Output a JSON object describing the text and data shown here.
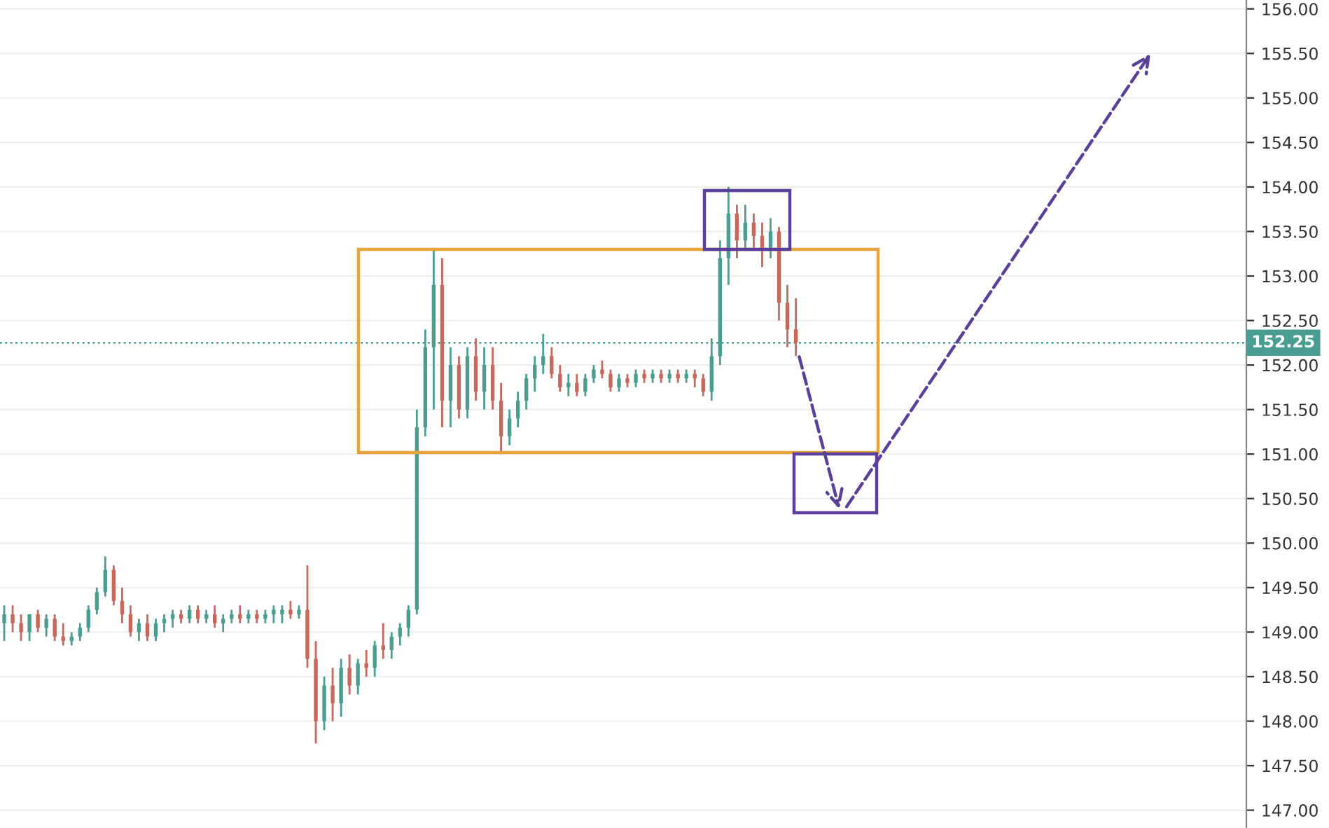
{
  "chart_data": {
    "type": "candlestick",
    "categories": [
      null,
      null,
      null,
      null,
      null,
      null,
      null,
      null,
      null,
      null,
      null,
      null,
      null,
      null,
      null,
      null,
      null,
      null,
      null,
      null,
      null,
      null,
      null,
      null,
      null,
      null,
      null,
      null,
      null,
      null,
      null,
      null,
      null,
      null,
      null,
      null,
      null,
      null,
      null,
      null,
      null,
      null,
      null,
      null,
      null,
      null,
      null,
      null,
      null,
      null,
      null,
      null,
      null,
      null,
      null,
      null,
      null,
      null,
      null,
      null,
      null,
      null,
      null,
      null,
      null,
      null,
      null,
      null,
      null,
      null,
      null,
      null,
      null,
      null,
      null,
      null,
      null,
      null,
      null,
      null,
      null,
      null,
      null,
      null,
      null,
      null,
      null,
      null,
      null,
      null,
      null,
      null,
      null,
      null,
      null,
      null,
      null,
      null,
      null,
      null,
      null,
      null,
      null,
      null,
      null,
      null,
      null,
      null,
      null,
      null,
      null,
      null,
      null,
      null,
      null,
      null,
      null,
      null,
      null,
      null,
      null,
      null,
      null,
      null,
      null,
      null,
      null,
      null,
      null,
      null,
      null,
      null,
      null,
      null,
      null,
      null,
      null,
      null,
      null,
      null,
      null,
      null,
      null,
      null,
      null,
      null,
      null,
      null
    ],
    "ohlc": [
      [
        149.1,
        149.3,
        148.9,
        149.2
      ],
      [
        149.2,
        149.3,
        149.0,
        149.1
      ],
      [
        149.1,
        149.2,
        148.9,
        149.0
      ],
      [
        149.0,
        149.2,
        148.9,
        149.2
      ],
      [
        149.2,
        149.25,
        149.0,
        149.05
      ],
      [
        149.05,
        149.2,
        148.95,
        149.15
      ],
      [
        149.15,
        149.2,
        148.9,
        148.95
      ],
      [
        148.95,
        149.1,
        148.85,
        148.9
      ],
      [
        148.9,
        149.0,
        148.85,
        148.95
      ],
      [
        148.95,
        149.1,
        148.9,
        149.05
      ],
      [
        149.05,
        149.3,
        149.0,
        149.25
      ],
      [
        149.25,
        149.5,
        149.2,
        149.45
      ],
      [
        149.45,
        149.85,
        149.4,
        149.7
      ],
      [
        149.7,
        149.75,
        149.3,
        149.35
      ],
      [
        149.35,
        149.5,
        149.1,
        149.2
      ],
      [
        149.2,
        149.3,
        148.95,
        149.0
      ],
      [
        149.0,
        149.15,
        148.9,
        149.1
      ],
      [
        149.1,
        149.2,
        148.9,
        148.95
      ],
      [
        148.95,
        149.15,
        148.9,
        149.1
      ],
      [
        149.1,
        149.2,
        149.0,
        149.15
      ],
      [
        149.15,
        149.25,
        149.05,
        149.2
      ],
      [
        149.2,
        149.25,
        149.1,
        149.15
      ],
      [
        149.15,
        149.3,
        149.1,
        149.25
      ],
      [
        149.25,
        149.3,
        149.1,
        149.15
      ],
      [
        149.15,
        149.25,
        149.1,
        149.2
      ],
      [
        149.2,
        149.3,
        149.05,
        149.1
      ],
      [
        149.1,
        149.2,
        149.0,
        149.15
      ],
      [
        149.15,
        149.25,
        149.1,
        149.2
      ],
      [
        149.2,
        149.3,
        149.1,
        149.15
      ],
      [
        149.15,
        149.25,
        149.1,
        149.2
      ],
      [
        149.2,
        149.25,
        149.1,
        149.15
      ],
      [
        149.15,
        149.25,
        149.1,
        149.2
      ],
      [
        149.2,
        149.3,
        149.1,
        149.25
      ],
      [
        149.2,
        149.3,
        149.1,
        149.25
      ],
      [
        149.25,
        149.35,
        149.15,
        149.2
      ],
      [
        149.2,
        149.3,
        149.15,
        149.25
      ],
      [
        149.25,
        149.75,
        148.6,
        148.7
      ],
      [
        148.7,
        148.9,
        147.75,
        148.0
      ],
      [
        148.0,
        148.5,
        147.9,
        148.4
      ],
      [
        148.4,
        148.6,
        148.0,
        148.2
      ],
      [
        148.2,
        148.7,
        148.05,
        148.6
      ],
      [
        148.6,
        148.75,
        148.3,
        148.4
      ],
      [
        148.4,
        148.7,
        148.3,
        148.65
      ],
      [
        148.65,
        148.8,
        148.5,
        148.6
      ],
      [
        148.6,
        148.9,
        148.5,
        148.85
      ],
      [
        148.85,
        149.1,
        148.7,
        148.8
      ],
      [
        148.8,
        149.0,
        148.7,
        148.95
      ],
      [
        148.95,
        149.1,
        148.85,
        149.05
      ],
      [
        149.05,
        149.3,
        148.95,
        149.25
      ],
      [
        149.25,
        151.5,
        149.2,
        151.3
      ],
      [
        151.3,
        152.4,
        151.2,
        152.2
      ],
      [
        152.2,
        153.3,
        151.5,
        152.9
      ],
      [
        152.9,
        153.2,
        151.3,
        151.6
      ],
      [
        151.6,
        152.2,
        151.3,
        152.0
      ],
      [
        152.0,
        152.1,
        151.4,
        151.5
      ],
      [
        151.5,
        152.2,
        151.4,
        152.1
      ],
      [
        152.1,
        152.3,
        151.6,
        151.7
      ],
      [
        151.7,
        152.2,
        151.5,
        152.0
      ],
      [
        152.0,
        152.2,
        151.5,
        151.6
      ],
      [
        151.6,
        151.8,
        151.0,
        151.2
      ],
      [
        151.2,
        151.5,
        151.1,
        151.4
      ],
      [
        151.4,
        151.7,
        151.3,
        151.6
      ],
      [
        151.6,
        151.9,
        151.5,
        151.85
      ],
      [
        151.85,
        152.1,
        151.7,
        152.0
      ],
      [
        152.0,
        152.35,
        151.9,
        152.1
      ],
      [
        152.1,
        152.2,
        151.85,
        151.9
      ],
      [
        151.9,
        152.0,
        151.7,
        151.75
      ],
      [
        151.75,
        151.9,
        151.65,
        151.8
      ],
      [
        151.8,
        151.9,
        151.65,
        151.7
      ],
      [
        151.7,
        151.9,
        151.65,
        151.85
      ],
      [
        151.85,
        152.0,
        151.8,
        151.95
      ],
      [
        151.95,
        152.05,
        151.85,
        151.9
      ],
      [
        151.9,
        151.95,
        151.7,
        151.75
      ],
      [
        151.75,
        151.9,
        151.7,
        151.85
      ],
      [
        151.85,
        151.9,
        151.75,
        151.8
      ],
      [
        151.8,
        151.95,
        151.75,
        151.9
      ],
      [
        151.9,
        151.95,
        151.8,
        151.85
      ],
      [
        151.85,
        151.95,
        151.8,
        151.9
      ],
      [
        151.9,
        151.95,
        151.8,
        151.85
      ],
      [
        151.85,
        151.95,
        151.8,
        151.9
      ],
      [
        151.9,
        151.95,
        151.8,
        151.85
      ],
      [
        151.85,
        151.95,
        151.8,
        151.9
      ],
      [
        151.9,
        151.95,
        151.75,
        151.85
      ],
      [
        151.85,
        151.9,
        151.65,
        151.7
      ],
      [
        151.7,
        152.3,
        151.6,
        152.1
      ],
      [
        152.1,
        153.4,
        152.0,
        153.2
      ],
      [
        153.2,
        154.0,
        152.9,
        153.7
      ],
      [
        153.7,
        153.8,
        153.2,
        153.4
      ],
      [
        153.4,
        153.8,
        153.3,
        153.6
      ],
      [
        153.6,
        153.7,
        153.3,
        153.45
      ],
      [
        153.45,
        153.6,
        153.1,
        153.3
      ],
      [
        153.3,
        153.65,
        153.2,
        153.5
      ],
      [
        153.5,
        153.55,
        152.5,
        152.7
      ],
      [
        152.7,
        152.9,
        152.2,
        152.4
      ],
      [
        152.4,
        152.75,
        152.1,
        152.25
      ],
      null,
      null,
      null,
      null,
      null,
      null,
      null,
      null,
      null,
      null,
      null,
      null,
      null,
      null,
      null,
      null,
      null,
      null,
      null,
      null,
      null,
      null,
      null,
      null,
      null,
      null,
      null,
      null,
      null,
      null,
      null,
      null,
      null,
      null,
      null,
      null,
      null,
      null,
      null,
      null,
      null,
      null,
      null,
      null,
      null,
      null,
      null,
      null,
      null,
      null,
      null,
      null,
      null
    ],
    "ylim": [
      146.8,
      156.1
    ],
    "yticks": [
      {
        "value": 147,
        "label": "147.00"
      },
      {
        "value": 147.5,
        "label": "147.50"
      },
      {
        "value": 148,
        "label": "148.00"
      },
      {
        "value": 148.5,
        "label": "148.50"
      },
      {
        "value": 149,
        "label": "149.00"
      },
      {
        "value": 149.5,
        "label": "149.50"
      },
      {
        "value": 150,
        "label": "150.00"
      },
      {
        "value": 150.5,
        "label": "150.50"
      },
      {
        "value": 151,
        "label": "151.00"
      },
      {
        "value": 151.5,
        "label": "151.50"
      },
      {
        "value": 152,
        "label": "152.00"
      },
      {
        "value": 152.5,
        "label": "152.50"
      },
      {
        "value": 153,
        "label": "153.00"
      },
      {
        "value": 153.5,
        "label": "153.50"
      },
      {
        "value": 154,
        "label": "154.00"
      },
      {
        "value": 154.5,
        "label": "154.50"
      },
      {
        "value": 155,
        "label": "155.00"
      },
      {
        "value": 155.5,
        "label": "155.50"
      },
      {
        "value": 156,
        "label": "156.00"
      }
    ],
    "ref_lines": [
      {
        "axis": "y",
        "value": 152.25,
        "label": "152.25",
        "color": "#4a9e91",
        "line_style": "dotted"
      }
    ],
    "grid": "y",
    "tick_labels": "y"
  }
}
